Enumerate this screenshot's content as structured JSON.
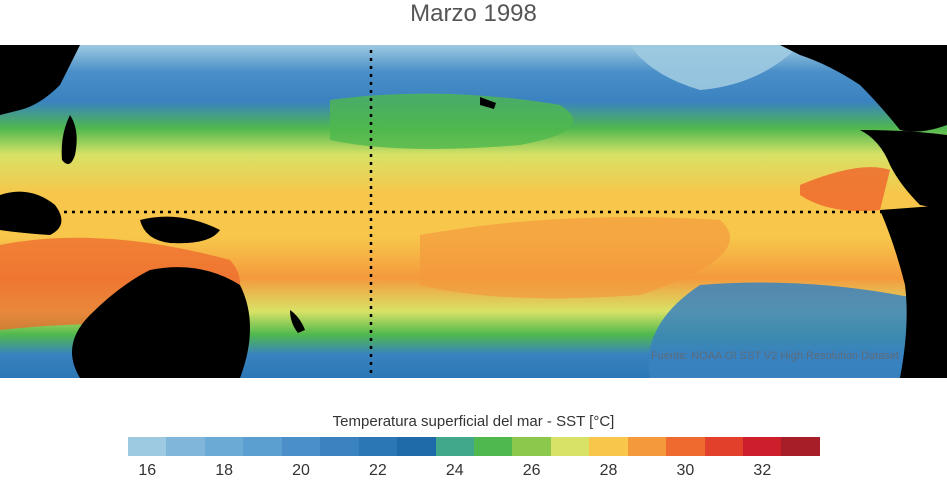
{
  "title": "Marzo 1998",
  "source": "Fuente: NOAA OI SST V2 High Resolution Dataset",
  "colorbar": {
    "title": "Temperatura superficial del mar - SST  [°C]",
    "tick_labels": [
      "16",
      "18",
      "20",
      "22",
      "24",
      "26",
      "28",
      "30",
      "32"
    ],
    "colors": [
      "#9ecae1",
      "#7fb6d9",
      "#6aaad4",
      "#5a9fd0",
      "#4a8fc8",
      "#3a82c0",
      "#2b77b5",
      "#1f6aa8",
      "#42a88c",
      "#4fb84e",
      "#8cc84b",
      "#d8e266",
      "#f7c64a",
      "#f49a3d",
      "#ee6a2e",
      "#e2402b",
      "#cc1f2b",
      "#a81e28"
    ]
  }
}
